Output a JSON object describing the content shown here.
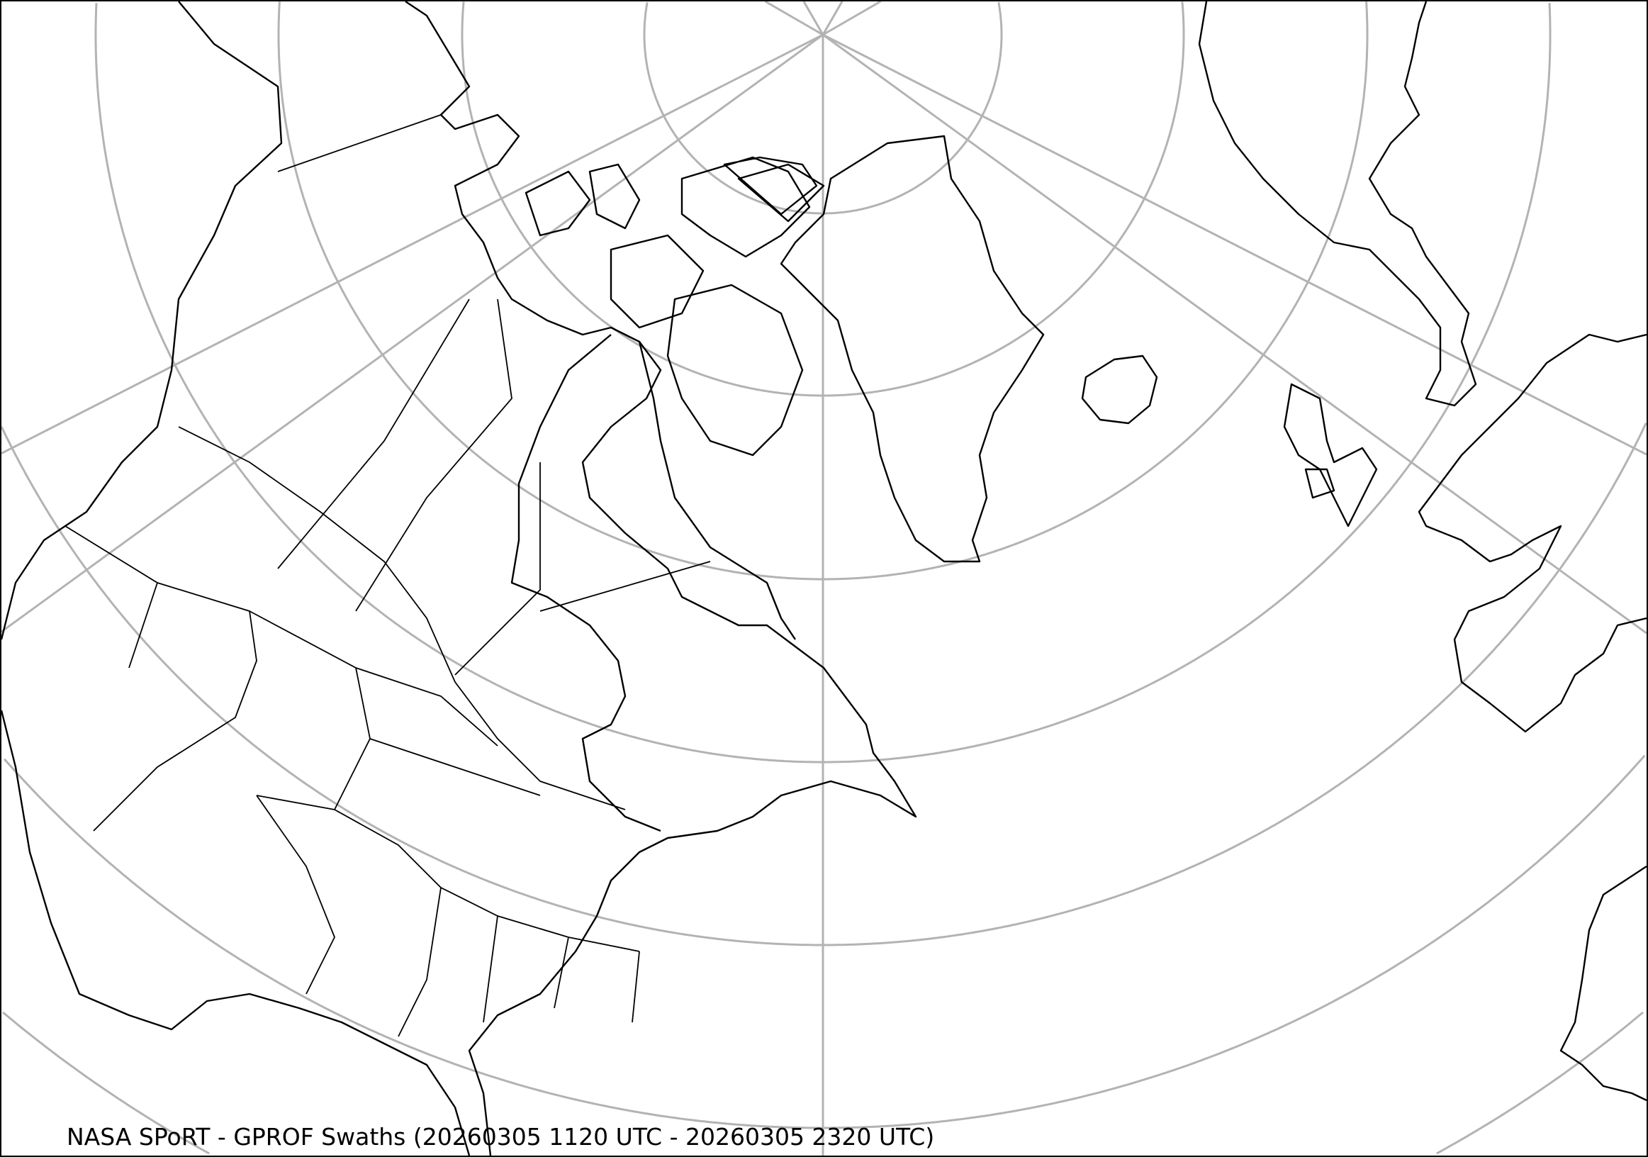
{
  "map": {
    "title": "NASA SPoRT - GPROF Swaths (20260305 1120 UTC - 20260305 2320 UTC)",
    "projection": "polar stereographic (north)",
    "region": "North America, North Atlantic, Greenland, Europe",
    "gridline_color": "#b3b3b3",
    "coastline_color": "#000000",
    "background_color": "#ffffff"
  }
}
